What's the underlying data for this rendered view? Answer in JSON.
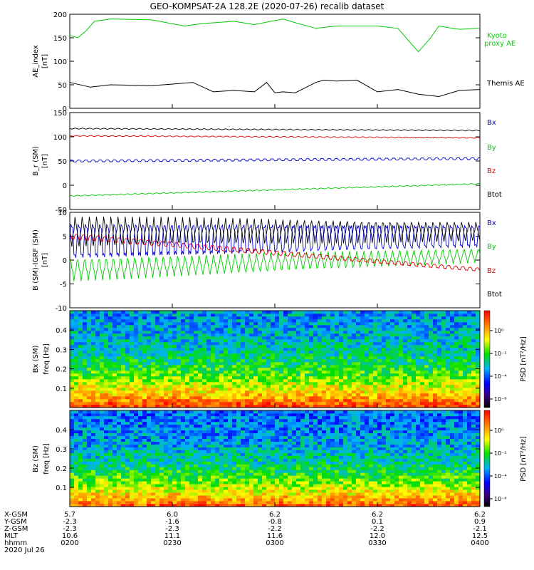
{
  "title": "GEO-KOMPSAT-2A 128.2E (2020-07-26) recalib dataset",
  "colors": {
    "black": "#000000",
    "red": "#dd0000",
    "blue": "#0000cc",
    "green": "#00cc00"
  },
  "chart_data": [
    {
      "type": "line",
      "name": "ae",
      "ylabel": [
        "AE_index",
        "[nT]"
      ],
      "ylim": [
        0,
        200
      ],
      "yticks": [
        0,
        50,
        100,
        150,
        200
      ],
      "series": [
        {
          "name": "Kyoto proxy AE",
          "label_lines": [
            "Kyoto",
            "proxy AE"
          ],
          "color": "#00cc00",
          "x": [
            0,
            0.02,
            0.04,
            0.06,
            0.1,
            0.2,
            0.28,
            0.32,
            0.4,
            0.45,
            0.52,
            0.55,
            0.6,
            0.65,
            0.72,
            0.75,
            0.8,
            0.82,
            0.85,
            0.88,
            0.9,
            0.92,
            0.95,
            1.0
          ],
          "y": [
            155,
            150,
            165,
            185,
            190,
            188,
            175,
            180,
            185,
            178,
            190,
            182,
            170,
            175,
            175,
            175,
            170,
            150,
            120,
            150,
            175,
            172,
            168,
            170
          ]
        },
        {
          "name": "Themis AE",
          "label_lines": [
            "Themis AE"
          ],
          "color": "#000000",
          "x": [
            0,
            0.05,
            0.1,
            0.2,
            0.3,
            0.35,
            0.4,
            0.45,
            0.48,
            0.5,
            0.52,
            0.55,
            0.6,
            0.62,
            0.65,
            0.7,
            0.75,
            0.8,
            0.85,
            0.9,
            0.95,
            1.0
          ],
          "y": [
            55,
            45,
            50,
            48,
            55,
            35,
            38,
            35,
            55,
            33,
            35,
            33,
            55,
            60,
            58,
            60,
            35,
            40,
            30,
            25,
            38,
            40
          ]
        }
      ]
    },
    {
      "type": "line",
      "name": "bsm",
      "ylabel": [
        "B_r (SM)",
        "[nT]"
      ],
      "ylim": [
        -50,
        150
      ],
      "yticks": [
        -50,
        0,
        50,
        100,
        150
      ],
      "series": [
        {
          "name": "Bx",
          "color": "#0000cc",
          "start": 50,
          "end": 55,
          "osc": 2.5
        },
        {
          "name": "By",
          "color": "#00cc00",
          "start": -22,
          "end": 3,
          "osc": 1
        },
        {
          "name": "Bz",
          "color": "#dd0000",
          "start": 102,
          "end": 98,
          "osc": 1
        },
        {
          "name": "Btot",
          "color": "#000000",
          "start": 117,
          "end": 113,
          "osc": 1
        }
      ]
    },
    {
      "type": "line",
      "name": "bdiff",
      "ylabel": [
        "B (SM)-IGRF (SM)",
        "[nT]"
      ],
      "ylim": [
        -10,
        10
      ],
      "yticks": [
        -10,
        -5,
        0,
        5,
        10
      ],
      "series": [
        {
          "name": "Bx",
          "color": "#0000cc",
          "start": 4,
          "end": 5,
          "osc": 3
        },
        {
          "name": "By",
          "color": "#00cc00",
          "start": -2,
          "end": 1,
          "osc": 1.5
        },
        {
          "name": "Bz",
          "color": "#dd0000",
          "start": 5,
          "end": -2,
          "osc": 0.5
        },
        {
          "name": "Btot",
          "color": "#000000",
          "start": 6,
          "end": 6,
          "osc": 2
        }
      ]
    },
    {
      "type": "heatmap",
      "name": "bx_spec",
      "ylabel": [
        "Bx (SM)",
        "freq [Hz]"
      ],
      "ylim": [
        0,
        0.5
      ],
      "yticks": [
        0.1,
        0.2,
        0.3,
        0.4
      ],
      "colorbar_label": "PSD [nT²/Hz]",
      "colorbar_ticks": [
        "10⁰",
        "10⁻²",
        "10⁻⁴",
        "10⁻⁶"
      ]
    },
    {
      "type": "heatmap",
      "name": "bz_spec",
      "ylabel": [
        "Bz (SM)",
        "freq [Hz]"
      ],
      "ylim": [
        0,
        0.5
      ],
      "yticks": [
        0.1,
        0.2,
        0.3,
        0.4
      ],
      "colorbar_label": "PSD [nT²/Hz]",
      "colorbar_ticks": [
        "10⁰",
        "10⁻²",
        "10⁻⁴",
        "10⁻⁶"
      ]
    }
  ],
  "x_axis": {
    "row_labels": [
      "X-GSM",
      "Y-GSM",
      "Z-GSM",
      "MLT",
      "hhmm",
      "2020 Jul 26"
    ],
    "columns": [
      [
        "5.7",
        "-2.3",
        "-2.3",
        "10.6",
        "0200"
      ],
      [
        "6.0",
        "-1.6",
        "-2.3",
        "11.1",
        "0230"
      ],
      [
        "6.2",
        "-0.8",
        "-2.2",
        "11.6",
        "0300"
      ],
      [
        "6.2",
        "0.1",
        "-2.2",
        "12.0",
        "0330"
      ],
      [
        "6.2",
        "0.9",
        "-2.1",
        "12.5",
        "0400"
      ]
    ]
  }
}
